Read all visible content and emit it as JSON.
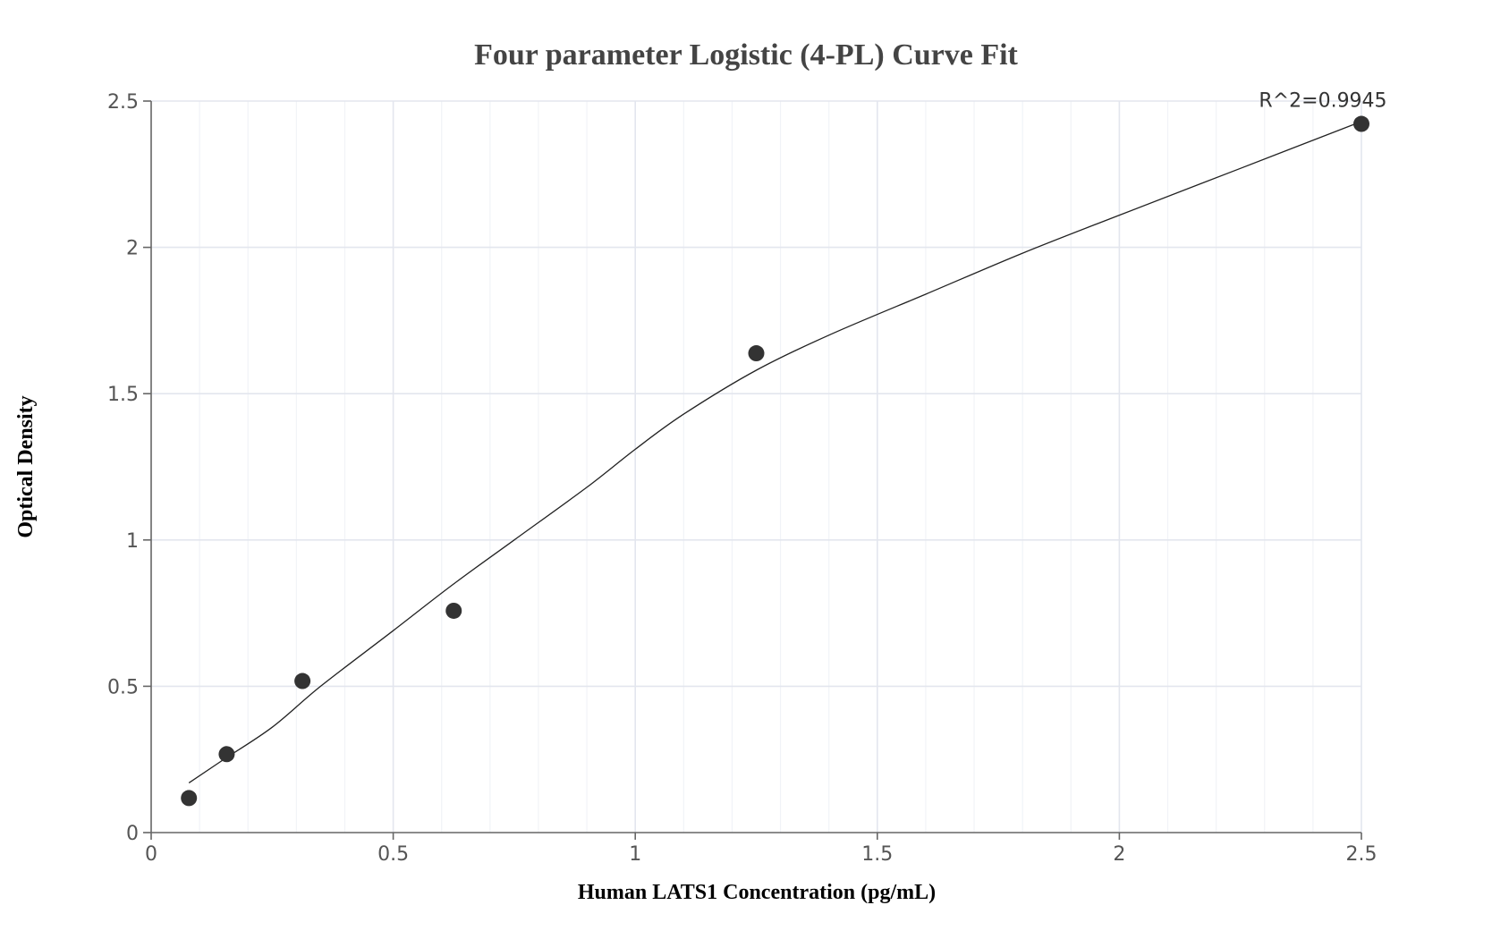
{
  "chart_data": {
    "type": "scatter",
    "title": "Four parameter Logistic (4-PL) Curve Fit",
    "xlabel": "Human LATS1 Concentration (pg/mL)",
    "ylabel": "Optical Density",
    "xlim": [
      0,
      2.5
    ],
    "ylim": [
      0,
      2.5
    ],
    "x_ticks": [
      "0",
      "0.5",
      "1",
      "1.5",
      "2",
      "2.5"
    ],
    "y_ticks": [
      "0",
      "0.5",
      "1",
      "1.5",
      "2",
      "2.5"
    ],
    "grid": true,
    "series": [
      {
        "points": [
          {
            "x": 0.078,
            "y": 0.118
          },
          {
            "x": 0.156,
            "y": 0.268
          },
          {
            "x": 0.3125,
            "y": 0.518
          },
          {
            "x": 0.625,
            "y": 0.758
          },
          {
            "x": 1.25,
            "y": 1.638
          },
          {
            "x": 2.5,
            "y": 2.422
          }
        ]
      }
    ],
    "fit_curve": {
      "model": "4-PL",
      "points": [
        {
          "x": 0.078,
          "y": 0.17
        },
        {
          "x": 0.15,
          "y": 0.25
        },
        {
          "x": 0.25,
          "y": 0.36
        },
        {
          "x": 0.35,
          "y": 0.5
        },
        {
          "x": 0.5,
          "y": 0.69
        },
        {
          "x": 0.625,
          "y": 0.85
        },
        {
          "x": 0.75,
          "y": 1.0
        },
        {
          "x": 0.9,
          "y": 1.18
        },
        {
          "x": 1.0,
          "y": 1.31
        },
        {
          "x": 1.1,
          "y": 1.43
        },
        {
          "x": 1.25,
          "y": 1.58
        },
        {
          "x": 1.4,
          "y": 1.7
        },
        {
          "x": 1.6,
          "y": 1.84
        },
        {
          "x": 1.8,
          "y": 1.98
        },
        {
          "x": 2.0,
          "y": 2.11
        },
        {
          "x": 2.25,
          "y": 2.27
        },
        {
          "x": 2.5,
          "y": 2.43
        }
      ]
    },
    "annotation": "R^2=0.9945",
    "colors": {
      "point": "#333333",
      "curve": "#222222",
      "grid": "#e3e6ee"
    }
  }
}
